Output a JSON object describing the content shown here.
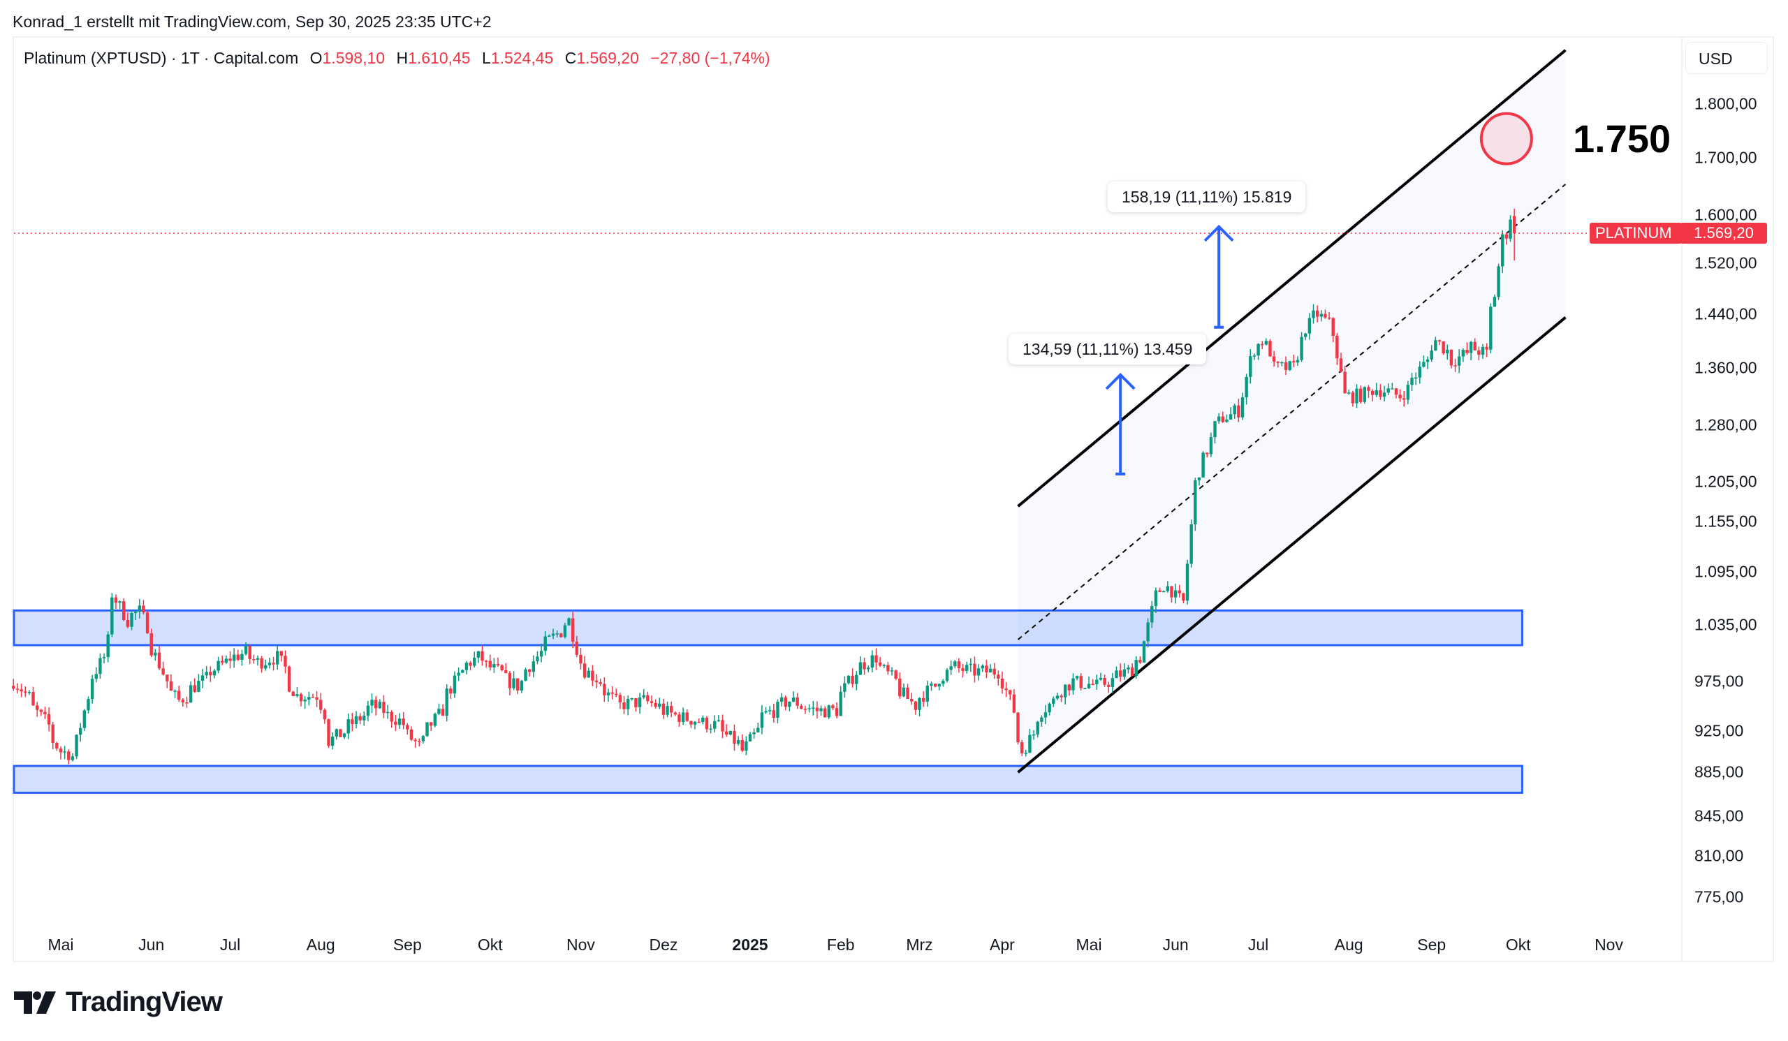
{
  "credit": "Konrad_1 erstellt mit TradingView.com, Sep 30, 2025 23:35 UTC+2",
  "legend": {
    "symbol": "Platinum (XPTUSD) · 1T · Capital.com",
    "open_key": "O",
    "open": "1.598,10",
    "high_key": "H",
    "high": "1.610,45",
    "low_key": "L",
    "low": "1.524,45",
    "close_key": "C",
    "close": "1.569,20",
    "change": "−27,80 (−1,74%)"
  },
  "currency_button": "USD",
  "price_tag": {
    "name": "PLATINUM",
    "value": "1.569,20",
    "price": 1569.2
  },
  "target_label": "1.750",
  "measures": [
    {
      "text": "134,59 (11,11%) 13.459"
    },
    {
      "text": "158,19 (11,11%) 15.819"
    }
  ],
  "logo_text": "TradingView",
  "colors": {
    "up": "#089981",
    "down": "#f23645",
    "zone": "#2962ff",
    "channel": "#000000",
    "arrow": "#2962ff",
    "price_line": "#f23645"
  },
  "chart_data": {
    "type": "candlestick",
    "interval": "1 day",
    "yscale": "log",
    "ylim": [
      760,
      1900
    ],
    "grid": false,
    "y_ticks": [
      {
        "value": 1800,
        "label": "1.800,00"
      },
      {
        "value": 1700,
        "label": "1.700,00"
      },
      {
        "value": 1600,
        "label": "1.600,00"
      },
      {
        "value": 1520,
        "label": "1.520,00"
      },
      {
        "value": 1440,
        "label": "1.440,00"
      },
      {
        "value": 1360,
        "label": "1.360,00"
      },
      {
        "value": 1280,
        "label": "1.280,00"
      },
      {
        "value": 1205,
        "label": "1.205,00"
      },
      {
        "value": 1155,
        "label": "1.155,00"
      },
      {
        "value": 1095,
        "label": "1.095,00"
      },
      {
        "value": 1035,
        "label": "1.035,00"
      },
      {
        "value": 975,
        "label": "975,00"
      },
      {
        "value": 925,
        "label": "925,00"
      },
      {
        "value": 885,
        "label": "885,00"
      },
      {
        "value": 845,
        "label": "845,00"
      },
      {
        "value": 810,
        "label": "810,00"
      },
      {
        "value": 775,
        "label": "775,00"
      }
    ],
    "x_ticks": [
      {
        "date": "2024-05-01",
        "label": "Mai"
      },
      {
        "date": "2024-06-03",
        "label": "Jun"
      },
      {
        "date": "2024-07-01",
        "label": "Jul"
      },
      {
        "date": "2024-08-01",
        "label": "Aug"
      },
      {
        "date": "2024-09-02",
        "label": "Sep"
      },
      {
        "date": "2024-10-01",
        "label": "Okt"
      },
      {
        "date": "2024-11-01",
        "label": "Nov"
      },
      {
        "date": "2024-12-02",
        "label": "Dez"
      },
      {
        "date": "2025-01-01",
        "label": "2025",
        "bold": true
      },
      {
        "date": "2025-02-03",
        "label": "Feb"
      },
      {
        "date": "2025-03-03",
        "label": "Mrz"
      },
      {
        "date": "2025-04-01",
        "label": "Apr"
      },
      {
        "date": "2025-05-01",
        "label": "Mai"
      },
      {
        "date": "2025-06-02",
        "label": "Jun"
      },
      {
        "date": "2025-07-01",
        "label": "Jul"
      },
      {
        "date": "2025-08-01",
        "label": "Aug"
      },
      {
        "date": "2025-09-01",
        "label": "Sep"
      },
      {
        "date": "2025-10-01",
        "label": "Okt"
      },
      {
        "date": "2025-11-03",
        "label": "Nov"
      }
    ],
    "close_path": [
      [
        "2024-04-15",
        975
      ],
      [
        "2024-04-25",
        935
      ],
      [
        "2024-05-01",
        905
      ],
      [
        "2024-05-06",
        900
      ],
      [
        "2024-05-10",
        960
      ],
      [
        "2024-05-16",
        1000
      ],
      [
        "2024-05-20",
        1070
      ],
      [
        "2024-05-24",
        1040
      ],
      [
        "2024-05-29",
        1050
      ],
      [
        "2024-06-03",
        1010
      ],
      [
        "2024-06-07",
        975
      ],
      [
        "2024-06-12",
        955
      ],
      [
        "2024-06-20",
        975
      ],
      [
        "2024-06-28",
        995
      ],
      [
        "2024-07-05",
        1005
      ],
      [
        "2024-07-10",
        995
      ],
      [
        "2024-07-17",
        1000
      ],
      [
        "2024-07-24",
        960
      ],
      [
        "2024-07-31",
        960
      ],
      [
        "2024-08-05",
        915
      ],
      [
        "2024-08-12",
        930
      ],
      [
        "2024-08-20",
        950
      ],
      [
        "2024-08-29",
        935
      ],
      [
        "2024-09-05",
        910
      ],
      [
        "2024-09-12",
        940
      ],
      [
        "2024-09-20",
        985
      ],
      [
        "2024-09-26",
        1000
      ],
      [
        "2024-10-03",
        985
      ],
      [
        "2024-10-10",
        970
      ],
      [
        "2024-10-18",
        1005
      ],
      [
        "2024-10-24",
        1025
      ],
      [
        "2024-10-29",
        1040
      ],
      [
        "2024-11-01",
        995
      ],
      [
        "2024-11-08",
        975
      ],
      [
        "2024-11-15",
        950
      ],
      [
        "2024-11-25",
        955
      ],
      [
        "2024-12-05",
        940
      ],
      [
        "2024-12-13",
        935
      ],
      [
        "2024-12-20",
        930
      ],
      [
        "2024-12-30",
        905
      ],
      [
        "2025-01-06",
        940
      ],
      [
        "2025-01-15",
        955
      ],
      [
        "2025-01-24",
        945
      ],
      [
        "2025-01-31",
        945
      ],
      [
        "2025-02-07",
        985
      ],
      [
        "2025-02-14",
        1000
      ],
      [
        "2025-02-21",
        975
      ],
      [
        "2025-02-28",
        950
      ],
      [
        "2025-03-07",
        970
      ],
      [
        "2025-03-14",
        990
      ],
      [
        "2025-03-21",
        985
      ],
      [
        "2025-03-31",
        985
      ],
      [
        "2025-04-04",
        945
      ],
      [
        "2025-04-08",
        905
      ],
      [
        "2025-04-15",
        945
      ],
      [
        "2025-04-25",
        975
      ],
      [
        "2025-05-05",
        970
      ],
      [
        "2025-05-15",
        985
      ],
      [
        "2025-05-20",
        1000
      ],
      [
        "2025-05-23",
        1050
      ],
      [
        "2025-05-28",
        1080
      ],
      [
        "2025-06-04",
        1060
      ],
      [
        "2025-06-06",
        1150
      ],
      [
        "2025-06-10",
        1220
      ],
      [
        "2025-06-13",
        1260
      ],
      [
        "2025-06-18",
        1290
      ],
      [
        "2025-06-24",
        1300
      ],
      [
        "2025-06-27",
        1370
      ],
      [
        "2025-07-02",
        1400
      ],
      [
        "2025-07-07",
        1360
      ],
      [
        "2025-07-14",
        1360
      ],
      [
        "2025-07-17",
        1420
      ],
      [
        "2025-07-22",
        1440
      ],
      [
        "2025-07-28",
        1410
      ],
      [
        "2025-07-31",
        1320
      ],
      [
        "2025-08-05",
        1320
      ],
      [
        "2025-08-12",
        1330
      ],
      [
        "2025-08-20",
        1320
      ],
      [
        "2025-08-26",
        1350
      ],
      [
        "2025-09-02",
        1400
      ],
      [
        "2025-09-08",
        1370
      ],
      [
        "2025-09-15",
        1390
      ],
      [
        "2025-09-19",
        1380
      ],
      [
        "2025-09-23",
        1470
      ],
      [
        "2025-09-25",
        1560
      ],
      [
        "2025-09-29",
        1598.1
      ],
      [
        "2025-09-30",
        1569.2
      ]
    ],
    "last_bar": {
      "open": 1598.1,
      "high": 1610.45,
      "low": 1524.45,
      "close": 1569.2
    },
    "drawings": {
      "zones": [
        {
          "from": "2024-04-15",
          "to": "2025-10-02",
          "top": 1051,
          "bottom": 1013
        },
        {
          "from": "2024-04-15",
          "to": "2025-10-02",
          "top": 891,
          "bottom": 866
        }
      ],
      "channel": {
        "from": "2025-04-07",
        "to": "2025-10-17",
        "lower": [
          885,
          1435
        ],
        "upper": [
          1174,
          1906
        ],
        "middle": [
          1019,
          1653
        ]
      },
      "arrows": [
        {
          "date": "2025-05-13",
          "from": 1215,
          "to": 1350
        },
        {
          "date": "2025-06-17",
          "from": 1420,
          "to": 1580
        }
      ],
      "target": {
        "date": "2025-09-26",
        "price": 1735
      }
    }
  }
}
